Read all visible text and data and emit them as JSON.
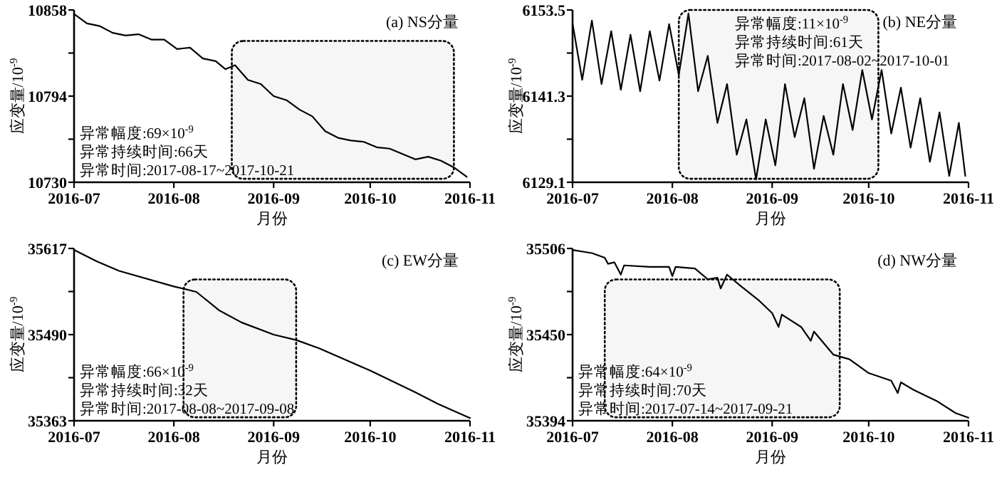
{
  "chart_data": [
    {
      "type": "line",
      "title": "(a) NS分量",
      "xlabel": "月份",
      "ylabel": "应变量/10$^{-9}$",
      "annotations": [
        "异常幅度:69×10$^{-9}$",
        "异常持续时间:66天",
        "异常时间:2017-08-17~2017-10-21"
      ],
      "x": [
        "2016-07-01",
        "2016-07-05",
        "2016-07-09",
        "2016-07-13",
        "2016-07-17",
        "2016-07-21",
        "2016-07-25",
        "2016-07-29",
        "2016-08-02",
        "2016-08-06",
        "2016-08-10",
        "2016-08-14",
        "2016-08-17",
        "2016-08-20",
        "2016-08-24",
        "2016-08-28",
        "2016-09-01",
        "2016-09-05",
        "2016-09-09",
        "2016-09-13",
        "2016-09-17",
        "2016-09-21",
        "2016-09-25",
        "2016-09-29",
        "2016-10-03",
        "2016-10-07",
        "2016-10-11",
        "2016-10-15",
        "2016-10-19",
        "2016-10-23",
        "2016-10-27",
        "2016-10-31"
      ],
      "series": [
        {
          "color": "#000000",
          "values": [
            10855,
            10848,
            10846,
            10841,
            10839,
            10840,
            10836,
            10836,
            10829,
            10830,
            10822,
            10820,
            10814,
            10817,
            10806,
            10803,
            10794,
            10791,
            10784,
            10779,
            10768,
            10763,
            10761,
            10760,
            10756,
            10755,
            10751,
            10747,
            10749,
            10746,
            10741,
            10734
          ]
        }
      ],
      "xlim": [
        "2016-07-01",
        "2016-11-01"
      ],
      "xticks": [
        "2016-07",
        "2016-08",
        "2016-09",
        "2016-10",
        "2016-11"
      ],
      "ylim": [
        10730,
        10858
      ],
      "yticks": [
        10858,
        {
          "value": 10826,
          "label": null
        },
        10794,
        {
          "value": 10762,
          "label": null
        },
        10730
      ],
      "bands": [
        {
          "axis": "x",
          "from": "2016-08-19",
          "to": "2016-10-27",
          "color": "#f6f6f6"
        }
      ],
      "marker": "none",
      "line_style": "solid"
    },
    {
      "type": "line",
      "title": "(b) NE分量",
      "xlabel": "月份",
      "ylabel": "应变量/10$^{-9}$",
      "annotations": [
        "异常幅度:11×10$^{-9}$",
        "异常持续时间:61天",
        "异常时间:2017-08-02~2017-10-01"
      ],
      "x": [
        "2016-07-01",
        "2016-07-04",
        "2016-07-07",
        "2016-07-10",
        "2016-07-13",
        "2016-07-16",
        "2016-07-19",
        "2016-07-22",
        "2016-07-25",
        "2016-07-28",
        "2016-07-31",
        "2016-08-03",
        "2016-08-06",
        "2016-08-09",
        "2016-08-12",
        "2016-08-15",
        "2016-08-18",
        "2016-08-21",
        "2016-08-24",
        "2016-08-27",
        "2016-08-30",
        "2016-09-02",
        "2016-09-05",
        "2016-09-08",
        "2016-09-11",
        "2016-09-14",
        "2016-09-17",
        "2016-09-20",
        "2016-09-23",
        "2016-09-26",
        "2016-09-29",
        "2016-10-02",
        "2016-10-05",
        "2016-10-08",
        "2016-10-11",
        "2016-10-14",
        "2016-10-17",
        "2016-10-20",
        "2016-10-23",
        "2016-10-26",
        "2016-10-29",
        "2016-10-31"
      ],
      "series": [
        {
          "color": "#000000",
          "values": [
            6151.6,
            6143.6,
            6152.0,
            6143.0,
            6150.5,
            6142.2,
            6150.0,
            6142.0,
            6150.5,
            6143.5,
            6151.5,
            6144.3,
            6153.0,
            6142.0,
            6147.0,
            6137.5,
            6143.0,
            6133.0,
            6138.0,
            6129.5,
            6138.0,
            6131.5,
            6143.0,
            6135.5,
            6141.0,
            6131.0,
            6138.5,
            6133.0,
            6143.0,
            6136.5,
            6145.0,
            6138.0,
            6145.0,
            6136.0,
            6142.5,
            6134.0,
            6141.0,
            6132.0,
            6139.0,
            6130.0,
            6137.5,
            6130.0
          ]
        }
      ],
      "xlim": [
        "2016-07-01",
        "2016-11-01"
      ],
      "xticks": [
        "2016-07",
        "2016-08",
        "2016-09",
        "2016-10",
        "2016-11"
      ],
      "ylim": [
        6129.1,
        6153.5
      ],
      "yticks": [
        6153.5,
        {
          "value": 6147.4,
          "label": null
        },
        6141.3,
        {
          "value": 6135.2,
          "label": null
        },
        6129.1
      ],
      "bands": [
        {
          "axis": "x",
          "from": "2016-08-03",
          "to": "2016-10-04",
          "color": "#f6f6f6"
        }
      ],
      "marker": "none",
      "line_style": "solid"
    },
    {
      "type": "line",
      "title": "(c) EW分量",
      "xlabel": "月份",
      "ylabel": "应变量/10$^{-9}$",
      "annotations": [
        "异常幅度:66×10$^{-9}$",
        "异常持续时间:32天",
        "异常时间:2017-08-08~2017-09-08"
      ],
      "x": [
        "2016-07-01",
        "2016-07-08",
        "2016-07-15",
        "2016-08-01",
        "2016-08-08",
        "2016-08-15",
        "2016-08-22",
        "2016-09-01",
        "2016-09-08",
        "2016-09-15",
        "2016-10-01",
        "2016-10-15",
        "2016-10-22",
        "2016-11-01"
      ],
      "series": [
        {
          "color": "#000000",
          "values": [
            35615,
            35598,
            35584,
            35561,
            35553,
            35526,
            35508,
            35490,
            35482,
            35470,
            35437,
            35405,
            35388,
            35367
          ]
        }
      ],
      "xlim": [
        "2016-07-01",
        "2016-11-01"
      ],
      "xticks": [
        "2016-07",
        "2016-08",
        "2016-09",
        "2016-10",
        "2016-11"
      ],
      "ylim": [
        35363,
        35617
      ],
      "yticks": [
        35617,
        {
          "value": 35553.5,
          "label": null
        },
        35490,
        {
          "value": 35426.5,
          "label": null
        },
        35363
      ],
      "bands": [
        {
          "axis": "x",
          "from": "2016-08-04",
          "to": "2016-09-08",
          "color": "#f6f6f6"
        }
      ],
      "marker": "none",
      "line_style": "solid"
    },
    {
      "type": "line",
      "title": "(d) NW分量",
      "xlabel": "月份",
      "ylabel": "应变量/10$^{-9}$",
      "annotations": [
        "异常幅度:64×10$^{-9}$",
        "异常持续时间:70天",
        "异常时间:2017-07-14~2017-09-21"
      ],
      "x": [
        "2016-07-01",
        "2016-07-07",
        "2016-07-11",
        "2016-07-12",
        "2016-07-14",
        "2016-07-16",
        "2016-07-17",
        "2016-07-25",
        "2016-07-31",
        "2016-08-01",
        "2016-08-02",
        "2016-08-08",
        "2016-08-12",
        "2016-08-15",
        "2016-08-16",
        "2016-08-18",
        "2016-08-22",
        "2016-08-28",
        "2016-09-01",
        "2016-09-03",
        "2016-09-04",
        "2016-09-10",
        "2016-09-13",
        "2016-09-14",
        "2016-09-20",
        "2016-09-25",
        "2016-10-01",
        "2016-10-08",
        "2016-10-10",
        "2016-10-11",
        "2016-10-15",
        "2016-10-22",
        "2016-10-28",
        "2016-11-01"
      ],
      "series": [
        {
          "color": "#000000",
          "values": [
            35505,
            35503,
            35500,
            35496,
            35497,
            35489,
            35495,
            35494,
            35494,
            35488,
            35494,
            35493,
            35486,
            35487,
            35480,
            35489,
            35482,
            35472,
            35464,
            35455,
            35463,
            35455,
            35446,
            35452,
            35437,
            35434,
            35425,
            35420,
            35412,
            35419,
            35414,
            35407,
            35399,
            35396
          ]
        }
      ],
      "xlim": [
        "2016-07-01",
        "2016-11-01"
      ],
      "xticks": [
        "2016-07",
        "2016-08",
        "2016-09",
        "2016-10",
        "2016-11"
      ],
      "ylim": [
        35394,
        35506
      ],
      "yticks": [
        35506,
        {
          "value": 35478,
          "label": null
        },
        35450,
        {
          "value": 35422,
          "label": null
        },
        35394
      ],
      "bands": [
        {
          "axis": "x",
          "from": "2016-07-11",
          "to": "2016-09-22",
          "color": "#f6f6f6"
        }
      ],
      "marker": "none",
      "line_style": "solid"
    }
  ]
}
